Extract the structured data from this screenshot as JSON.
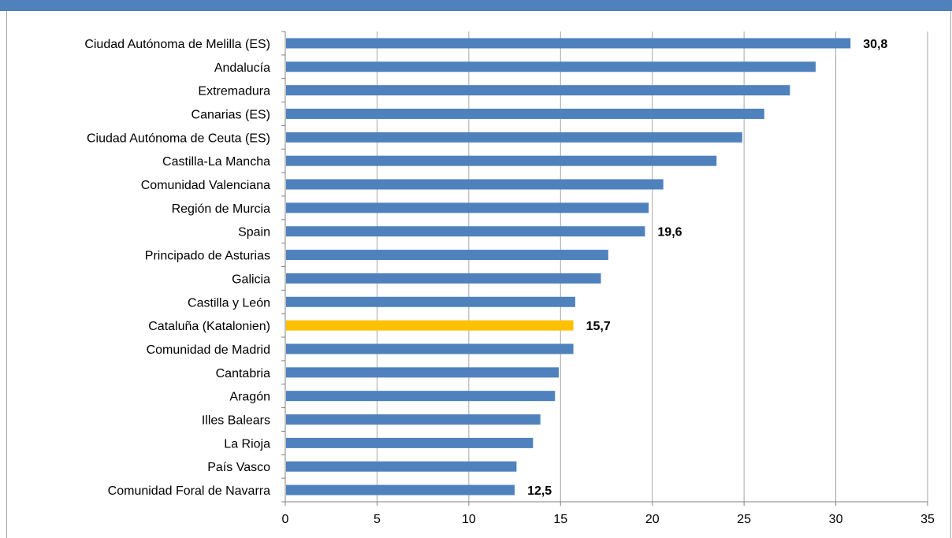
{
  "colors": {
    "bar": "#4f81bd",
    "highlight": "#ffc000",
    "grid": "#a6a6a6",
    "axis": "#808080",
    "top_bar": "#4f81bd"
  },
  "chart_data": {
    "type": "bar",
    "orientation": "horizontal",
    "title": "",
    "xlabel": "",
    "ylabel": "",
    "xlim": [
      0,
      35
    ],
    "xticks": [
      "0",
      "5",
      "10",
      "15",
      "20",
      "25",
      "30",
      "35"
    ],
    "grid": "vertical",
    "legend": "none",
    "categories": [
      "Ciudad Autónoma de Melilla (ES)",
      "Andalucía",
      "Extremadura",
      "Canarias (ES)",
      "Ciudad Autónoma de Ceuta (ES)",
      "Castilla-La Mancha",
      "Comunidad Valenciana",
      "Región de Murcia",
      "Spain",
      "Principado de Asturias",
      "Galicia",
      "Castilla y León",
      "Cataluña (Katalonien)",
      "Comunidad de Madrid",
      "Cantabria",
      "Aragón",
      "Illes Balears",
      "La Rioja",
      "País Vasco",
      "Comunidad Foral de Navarra"
    ],
    "values": [
      30.8,
      28.9,
      27.5,
      26.1,
      24.9,
      23.5,
      20.6,
      19.8,
      19.6,
      17.6,
      17.2,
      15.8,
      15.7,
      15.7,
      14.9,
      14.7,
      13.9,
      13.5,
      12.6,
      12.5
    ],
    "highlight_category": "Cataluña (Katalonien)",
    "data_labels": [
      {
        "category": "Ciudad Autónoma de Melilla (ES)",
        "text": "30,8"
      },
      {
        "category": "Spain",
        "text": "19,6"
      },
      {
        "category": "Cataluña (Katalonien)",
        "text": "15,7"
      },
      {
        "category": "Comunidad Foral de Navarra",
        "text": "12,5"
      }
    ]
  }
}
